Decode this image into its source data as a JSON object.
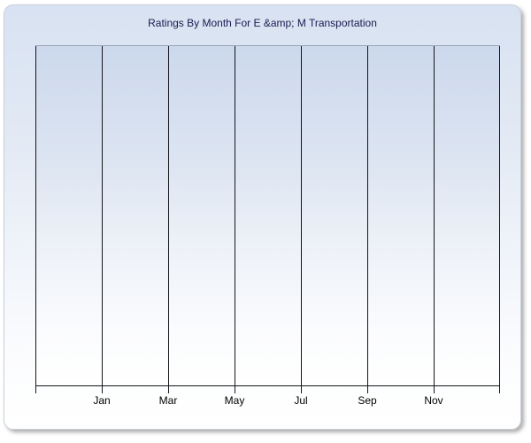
{
  "widget": {
    "background_top": "#d8e2f2",
    "background_bottom": "#ffffff",
    "border_color": "#c9d0da",
    "shadow_color": "#6e6e6e"
  },
  "chart": {
    "title": "Ratings By Month For E &amp; M Transportation",
    "title_color": "#1b1b50"
  },
  "chart_data": {
    "type": "line",
    "title": "Ratings By Month For E &amp; M Transportation",
    "series": [],
    "x_tick_labels": [
      "Jan",
      "Mar",
      "May",
      "Jul",
      "Sep",
      "Nov"
    ],
    "x_gridline_count": 8,
    "x_labels_on_gridline_indices": [
      1,
      2,
      3,
      4,
      5,
      6
    ],
    "y_axis_labels": [],
    "legend": "none",
    "grid": "vertical-only",
    "plot_empty": true,
    "colors": {
      "gridline": "#15171c",
      "x_axis_line": "#15171c",
      "plot_top_border": "#9ba7b9",
      "plot_bg_top": "#ccd8ec",
      "plot_bg_bottom": "#ffffff",
      "tick_label_color": "#000000"
    }
  }
}
